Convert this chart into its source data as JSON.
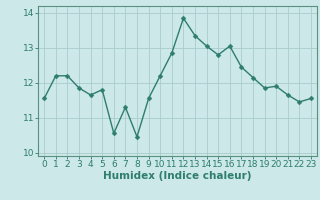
{
  "x": [
    0,
    1,
    2,
    3,
    4,
    5,
    6,
    7,
    8,
    9,
    10,
    11,
    12,
    13,
    14,
    15,
    16,
    17,
    18,
    19,
    20,
    21,
    22,
    23
  ],
  "y": [
    11.55,
    12.2,
    12.2,
    11.85,
    11.65,
    11.8,
    10.55,
    11.3,
    10.45,
    11.55,
    12.2,
    12.85,
    13.85,
    13.35,
    13.05,
    12.8,
    13.05,
    12.45,
    12.15,
    11.85,
    11.9,
    11.65,
    11.45,
    11.55
  ],
  "line_color": "#2e7d6e",
  "marker": "D",
  "marker_size": 2.5,
  "bg_color": "#cce8e8",
  "grid_color": "#aacccc",
  "xlabel": "Humidex (Indice chaleur)",
  "ylabel": "",
  "ylim": [
    9.9,
    14.2
  ],
  "xlim": [
    -0.5,
    23.5
  ],
  "yticks": [
    10,
    11,
    12,
    13,
    14
  ],
  "xticks": [
    0,
    1,
    2,
    3,
    4,
    5,
    6,
    7,
    8,
    9,
    10,
    11,
    12,
    13,
    14,
    15,
    16,
    17,
    18,
    19,
    20,
    21,
    22,
    23
  ],
  "font_color": "#2e7d6e",
  "axis_color": "#5a9080",
  "tick_fontsize": 6.5,
  "xlabel_fontsize": 7.5
}
